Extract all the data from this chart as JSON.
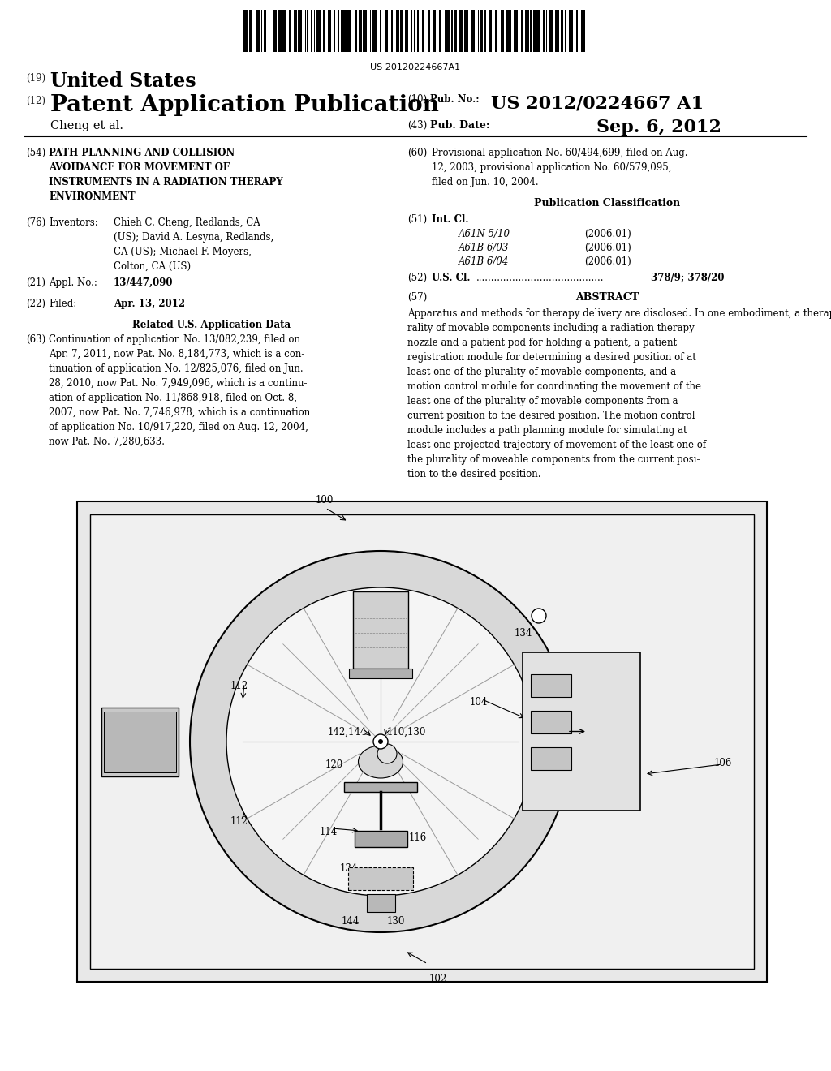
{
  "background_color": "#ffffff",
  "page_width": 10.24,
  "page_height": 13.2,
  "barcode_text": "US 20120224667A1",
  "header": {
    "country_label": "(19)",
    "country": "United States",
    "kind_label": "(12)",
    "kind": "Patent Application Publication",
    "pub_no_label": "(10) Pub. No.:",
    "pub_no": "US 2012/0224667 A1",
    "author": "Cheng et al.",
    "pub_date_label": "(43) Pub. Date:",
    "pub_date": "Sep. 6, 2012"
  },
  "left_col": {
    "title_num": "(54)",
    "title": "PATH PLANNING AND COLLISION\nAVOIDANCE FOR MOVEMENT OF\nINSTRUMENTS IN A RADIATION THERAPY\nENVIRONMENT",
    "inventors_num": "(76)",
    "inventors_label": "Inventors:",
    "inventors_name": "Chieh C. Cheng, Redlands, CA\n(US); David A. Lesyna, Redlands,\nCA (US); Michael F. Moyers,\nColton, CA (US)",
    "appl_num": "(21)",
    "appl_label": "Appl. No.:",
    "appl_val": "13/447,090",
    "filed_num": "(22)",
    "filed_label": "Filed:",
    "filed_val": "Apr. 13, 2012",
    "related_title": "Related U.S. Application Data",
    "related_num": "(63)",
    "related_text": "Continuation of application No. 13/082,239, filed on\nApr. 7, 2011, now Pat. No. 8,184,773, which is a con-\ntinuation of application No. 12/825,076, filed on Jun.\n28, 2010, now Pat. No. 7,949,096, which is a continu-\nation of application No. 11/868,918, filed on Oct. 8,\n2007, now Pat. No. 7,746,978, which is a continuation\nof application No. 10/917,220, filed on Aug. 12, 2004,\nnow Pat. No. 7,280,633."
  },
  "right_col": {
    "prov_num": "(60)",
    "prov_text": "Provisional application No. 60/494,699, filed on Aug.\n12, 2003, provisional application No. 60/579,095,\nfiled on Jun. 10, 2004.",
    "pub_class_title": "Publication Classification",
    "intcl_num": "(51)",
    "intcl_label": "Int. Cl.",
    "classifications": [
      {
        "code": "A61N 5/10",
        "date": "(2006.01)"
      },
      {
        "code": "A61B 6/03",
        "date": "(2006.01)"
      },
      {
        "code": "A61B 6/04",
        "date": "(2006.01)"
      }
    ],
    "uscl_num": "(52)",
    "uscl_label": "U.S. Cl.",
    "uscl_dots": "..........................................",
    "uscl_val": "378/9; 378/20",
    "abstract_num": "(57)",
    "abstract_title": "ABSTRACT",
    "abstract_text": "Apparatus and methods for therapy delivery are disclosed. In one embodiment, a therapy delivery system includes a plu-rality of movable components including a radiation therapy nozzle and a patient pod for holding a patient, a patient registration module for determining a desired position of at least one of the plurality of movable components, and a motion control module for coordinating the movement of the least one of the plurality of movable components from a current position to the desired position. The motion control module includes a path planning module for simulating at least one projected trajectory of movement of the least one of the plurality of moveable components from the current posi-tion to the desired position."
  }
}
